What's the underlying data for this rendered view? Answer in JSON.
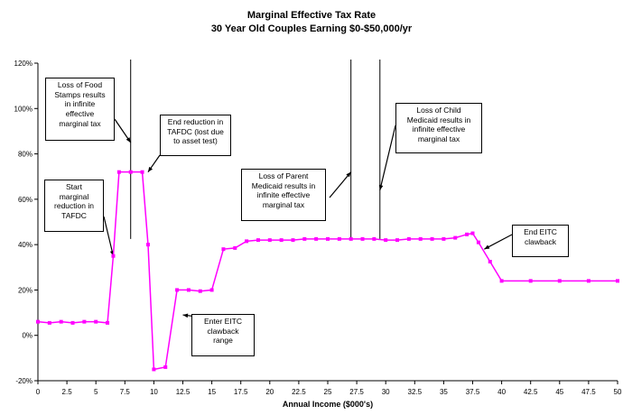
{
  "chart_data": {
    "type": "line",
    "title": "Marginal Effective Tax Rate",
    "subtitle": "30 Year Old Couples Earning $0-$50,000/yr",
    "xlabel": "Annual Income ($000's)",
    "ylabel": "",
    "xlim": [
      0,
      50
    ],
    "ylim": [
      -20,
      120
    ],
    "x_ticks": [
      "0",
      "2.5",
      "5",
      "7.5",
      "10",
      "12.5",
      "15",
      "17.5",
      "20",
      "22.5",
      "25",
      "27.5",
      "30",
      "32.5",
      "35",
      "37.5",
      "40",
      "42.5",
      "45",
      "47.5",
      "50"
    ],
    "y_ticks": [
      "-20%",
      "0%",
      "20%",
      "40%",
      "60%",
      "80%",
      "100%",
      "120%"
    ],
    "grid": false,
    "legend": "none",
    "line_color": "#ff00ff",
    "series": [
      {
        "x": [
          0,
          1,
          2,
          3,
          4,
          5,
          6,
          6.5,
          7,
          8,
          9,
          9.5,
          10,
          11,
          12,
          13,
          14,
          15,
          16,
          17,
          18,
          19,
          20,
          21,
          22,
          23,
          24,
          25,
          26,
          27,
          28,
          29,
          30,
          31,
          32,
          33,
          34,
          35,
          36,
          37,
          37.5,
          38,
          39,
          40,
          42.5,
          45,
          47.5,
          50
        ],
        "y": [
          6,
          5.5,
          6,
          5.5,
          6,
          6,
          5.5,
          35,
          72,
          72,
          72,
          40,
          -15,
          -14,
          20,
          20,
          19.5,
          20,
          38,
          38.5,
          41.5,
          42,
          42,
          42,
          42,
          42.5,
          42.5,
          42.5,
          42.5,
          42.5,
          42.5,
          42.5,
          42,
          42,
          42.5,
          42.5,
          42.5,
          42.5,
          43,
          44.5,
          45,
          41,
          32.5,
          24,
          24,
          24,
          24,
          24
        ]
      }
    ],
    "spikes_x": [
      8,
      27,
      29.5
    ],
    "annotations": [
      "Loss of Food\nStamps results\nin infinite\neffective\nmarginal tax",
      "End reduction in\nTAFDC (lost due\nto asset test)",
      "Start\nmarginal\nreduction in\nTAFDC",
      "Enter EITC\nclawback\nrange",
      "Loss of Parent\nMedicaid results in\ninfinite effective\nmarginal tax",
      "Loss of Child\nMedicaid results in\ninfinite effective\nmarginal tax",
      "End EITC\nclawback"
    ]
  }
}
